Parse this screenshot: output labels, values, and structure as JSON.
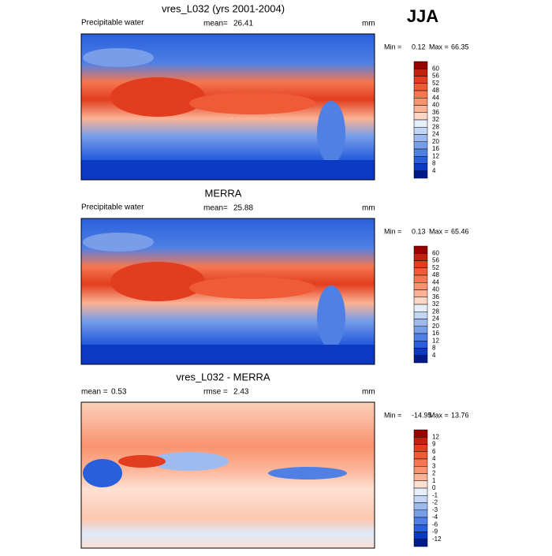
{
  "season": "JJA",
  "panels": [
    {
      "title": "vres_L032 (yrs 2001-2004)",
      "variable": "Precipitable water",
      "stat1_label": "mean=",
      "stat1_value": 26.41,
      "units": "mm",
      "min_label": "Min =",
      "min": 0.12,
      "max_label": "Max =",
      "max": 66.35,
      "levels": [
        60,
        56,
        52,
        48,
        44,
        40,
        36,
        32,
        28,
        24,
        20,
        16,
        12,
        8,
        4
      ],
      "colors": [
        "#990000",
        "#c4200f",
        "#e23d1e",
        "#ef5a37",
        "#f57650",
        "#f9936f",
        "#fcb295",
        "#fdd7c4",
        "#e6eefb",
        "#c3d6f5",
        "#9dbbef",
        "#789ee9",
        "#5080e4",
        "#2a5fdc",
        "#0c39c4",
        "#001a8a"
      ]
    },
    {
      "title": "MERRA",
      "variable": "Precipitable water",
      "stat1_label": "mean=",
      "stat1_value": 25.88,
      "units": "mm",
      "min_label": "Min =",
      "min": 0.13,
      "max_label": "Max =",
      "max": 65.46,
      "levels": [
        60,
        56,
        52,
        48,
        44,
        40,
        36,
        32,
        28,
        24,
        20,
        16,
        12,
        8,
        4
      ],
      "colors": [
        "#990000",
        "#c4200f",
        "#e23d1e",
        "#ef5a37",
        "#f57650",
        "#f9936f",
        "#fcb295",
        "#fdd7c4",
        "#e6eefb",
        "#c3d6f5",
        "#9dbbef",
        "#789ee9",
        "#5080e4",
        "#2a5fdc",
        "#0c39c4",
        "#001a8a"
      ]
    },
    {
      "title": "vres_L032 - MERRA",
      "stat1_label": "mean =",
      "stat1_value": 0.53,
      "stat2_label": "rmse =",
      "stat2_value": 2.43,
      "units": "mm",
      "min_label": "Min =",
      "min": -14.95,
      "max_label": "Max =",
      "max": 13.76,
      "levels": [
        12,
        9,
        6,
        4,
        3,
        2,
        1,
        0,
        -1,
        -2,
        -3,
        -4,
        -6,
        -9,
        -12
      ],
      "colors": [
        "#990000",
        "#c4200f",
        "#e23d1e",
        "#ef5a37",
        "#f57650",
        "#f9936f",
        "#fcb295",
        "#fde0d2",
        "#e6eefb",
        "#c3d6f5",
        "#9dbbef",
        "#789ee9",
        "#5080e4",
        "#2a5fdc",
        "#0c39c4",
        "#001a8a"
      ]
    }
  ]
}
